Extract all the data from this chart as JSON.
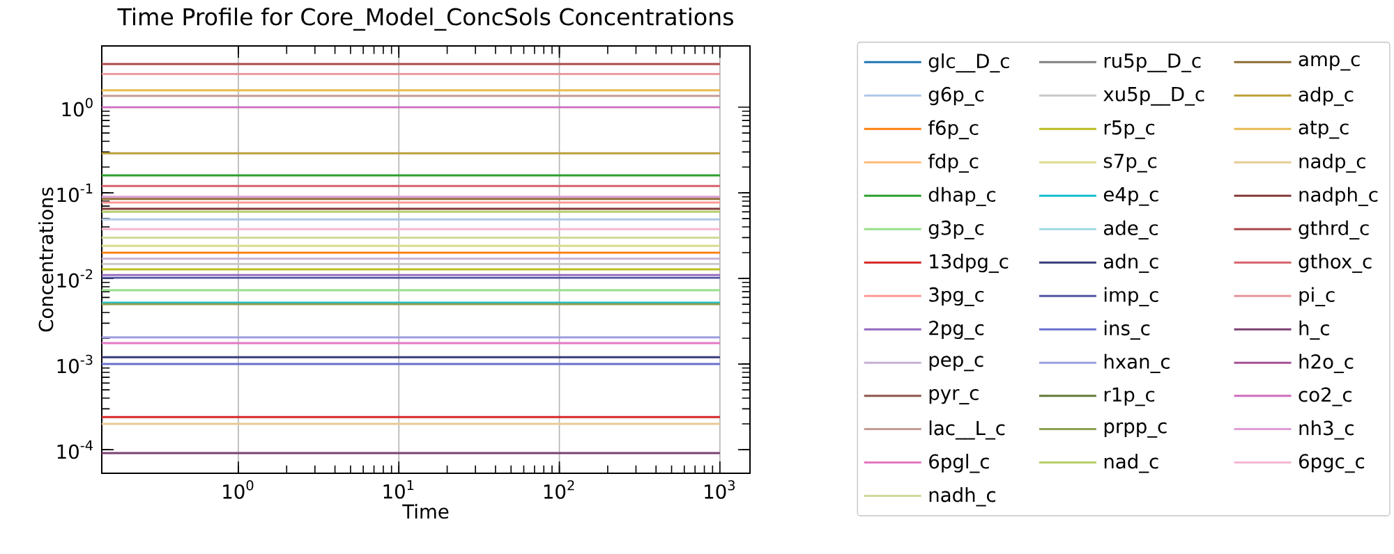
{
  "chart_data": {
    "type": "line",
    "title": "Time Profile for Core_Model_ConcSols Concentrations",
    "xlabel": "Time",
    "ylabel": "Concentrations",
    "log": "xy",
    "grid": "x",
    "legend": "right",
    "marker": "none",
    "line_style": "solid",
    "x": [
      0.141,
      1000
    ],
    "xlim": [
      0.141,
      1540
    ],
    "ylim": [
      5.3e-05,
      5.2
    ],
    "xticks": [
      {
        "value": 1,
        "label": "10$^{0}$"
      },
      {
        "value": 10,
        "label": "10$^{1}$"
      },
      {
        "value": 100,
        "label": "10$^{2}$"
      },
      {
        "value": 1000,
        "label": "10$^{3}$"
      }
    ],
    "yticks": [
      {
        "value": 0.0001,
        "label": "10$^{-4}$"
      },
      {
        "value": 0.001,
        "label": "10$^{-3}$"
      },
      {
        "value": 0.01,
        "label": "10$^{-2}$"
      },
      {
        "value": 0.1,
        "label": "10$^{-1}$"
      },
      {
        "value": 1,
        "label": "10$^{0}$"
      }
    ],
    "series": [
      {
        "name": "glc__D_c",
        "color": "#1f77b4",
        "values": [
          null,
          null
        ]
      },
      {
        "name": "g6p_c",
        "color": "#aec7e8",
        "values": [
          0.049,
          0.049
        ]
      },
      {
        "name": "f6p_c",
        "color": "#ff7f0e",
        "values": [
          0.02,
          0.02
        ]
      },
      {
        "name": "fdp_c",
        "color": "#ffbb78",
        "values": [
          null,
          null
        ]
      },
      {
        "name": "dhap_c",
        "color": "#2ca02c",
        "values": [
          0.16,
          0.16
        ]
      },
      {
        "name": "g3p_c",
        "color": "#98df8a",
        "values": [
          0.0073,
          0.0073
        ]
      },
      {
        "name": "13dpg_c",
        "color": "#d62728",
        "values": [
          0.00024,
          0.00024
        ]
      },
      {
        "name": "3pg_c",
        "color": "#ff9896",
        "values": [
          0.077,
          0.077
        ]
      },
      {
        "name": "2pg_c",
        "color": "#9467bd",
        "values": [
          0.011,
          0.011
        ]
      },
      {
        "name": "pep_c",
        "color": "#c5b0d5",
        "values": [
          0.017,
          0.017
        ]
      },
      {
        "name": "pyr_c",
        "color": "#8c564b",
        "values": [
          null,
          null
        ]
      },
      {
        "name": "lac__L_c",
        "color": "#c49c94",
        "values": [
          1.36,
          1.36
        ]
      },
      {
        "name": "6pgl_c",
        "color": "#e377c2",
        "values": [
          0.00176,
          0.00176
        ]
      },
      {
        "name": "6pgc_c",
        "color": "#f7b6d2",
        "values": [
          0.0376,
          0.0376
        ]
      },
      {
        "name": "ru5p__D_c",
        "color": "#7f7f7f",
        "values": [
          null,
          null
        ]
      },
      {
        "name": "xu5p__D_c",
        "color": "#c7c7c7",
        "values": [
          0.0148,
          0.0148
        ]
      },
      {
        "name": "r5p_c",
        "color": "#bcbd22",
        "values": [
          0.0128,
          0.0128
        ]
      },
      {
        "name": "s7p_c",
        "color": "#dbdb8d",
        "values": [
          0.024,
          0.024
        ]
      },
      {
        "name": "e4p_c",
        "color": "#17becf",
        "values": [
          0.0052,
          0.0052
        ]
      },
      {
        "name": "ade_c",
        "color": "#9edae5",
        "values": [
          null,
          null
        ]
      },
      {
        "name": "adn_c",
        "color": "#393b79",
        "values": [
          0.0012,
          0.0012
        ]
      },
      {
        "name": "imp_c",
        "color": "#5254a3",
        "values": [
          0.0102,
          0.0102
        ]
      },
      {
        "name": "ins_c",
        "color": "#6b6ecf",
        "values": [
          0.001,
          0.001
        ]
      },
      {
        "name": "hxan_c",
        "color": "#9c9ede",
        "values": [
          0.00205,
          0.00205
        ]
      },
      {
        "name": "r1p_c",
        "color": "#637939",
        "values": [
          null,
          null
        ]
      },
      {
        "name": "prpp_c",
        "color": "#8ca252",
        "values": [
          0.005,
          0.005
        ]
      },
      {
        "name": "nad_c",
        "color": "#b5cf6b",
        "values": [
          0.06,
          0.06
        ]
      },
      {
        "name": "nadh_c",
        "color": "#cedb9c",
        "values": [
          0.03,
          0.03
        ]
      },
      {
        "name": "amp_c",
        "color": "#8c6d31",
        "values": [
          0.085,
          0.085
        ]
      },
      {
        "name": "adp_c",
        "color": "#bd9e39",
        "values": [
          0.29,
          0.29
        ]
      },
      {
        "name": "atp_c",
        "color": "#e7ba52",
        "values": [
          1.58,
          1.58
        ]
      },
      {
        "name": "nadp_c",
        "color": "#e7cb94",
        "values": [
          0.0002,
          0.0002
        ]
      },
      {
        "name": "nadph_c",
        "color": "#843c39",
        "values": [
          0.065,
          0.065
        ]
      },
      {
        "name": "gthrd_c",
        "color": "#ad494a",
        "values": [
          3.2,
          3.2
        ]
      },
      {
        "name": "gthox_c",
        "color": "#d6616b",
        "values": [
          0.12,
          0.12
        ]
      },
      {
        "name": "pi_c",
        "color": "#e7969c",
        "values": [
          2.45,
          2.45
        ]
      },
      {
        "name": "h_c",
        "color": "#7b4173",
        "values": [
          9.1e-05,
          9.1e-05
        ]
      },
      {
        "name": "h2o_c",
        "color": "#a55194",
        "values": [
          null,
          null
        ]
      },
      {
        "name": "co2_c",
        "color": "#ce6dbd",
        "values": [
          1.0,
          1.0
        ]
      },
      {
        "name": "nh3_c",
        "color": "#de9ed6",
        "values": [
          0.09,
          0.09
        ]
      }
    ]
  }
}
